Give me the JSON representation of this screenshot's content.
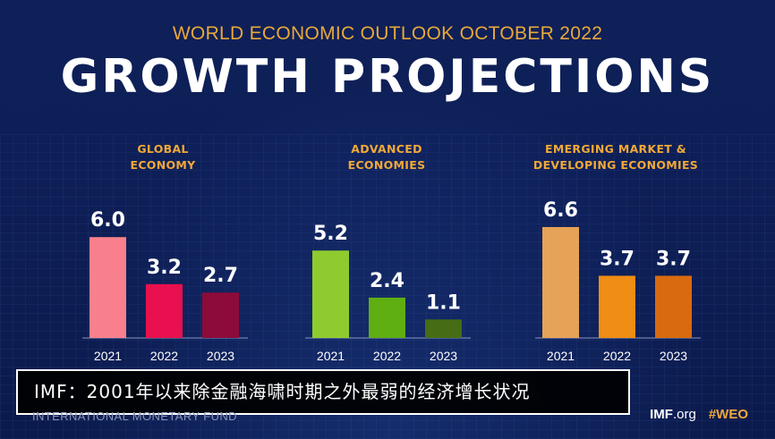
{
  "header": {
    "subtitle": "WORLD ECONOMIC OUTLOOK OCTOBER 2022",
    "title": "GROWTH PROJECTIONS"
  },
  "colors": {
    "background": "#0e1f57",
    "accent": "#f0a838",
    "global": [
      "#f7808c",
      "#e8104e",
      "#8c0b3a"
    ],
    "advanced": [
      "#8fcb2f",
      "#5fae12",
      "#466c16"
    ],
    "emerging": [
      "#e6a257",
      "#f08d14",
      "#d96a0f"
    ]
  },
  "chart_data": [
    {
      "type": "bar",
      "title": "GLOBAL ECONOMY",
      "title_lines": [
        "GLOBAL",
        "ECONOMY"
      ],
      "categories": [
        "2021",
        "2022",
        "2023"
      ],
      "values": [
        6.0,
        3.2,
        2.7
      ],
      "value_labels": [
        "6.0",
        "3.2",
        "2.7"
      ],
      "ylim": [
        0,
        7
      ]
    },
    {
      "type": "bar",
      "title": "ADVANCED ECONOMIES",
      "title_lines": [
        "ADVANCED",
        "ECONOMIES"
      ],
      "categories": [
        "2021",
        "2022",
        "2023"
      ],
      "values": [
        5.2,
        2.4,
        1.1
      ],
      "value_labels": [
        "5.2",
        "2.4",
        "1.1"
      ],
      "ylim": [
        0,
        7
      ]
    },
    {
      "type": "bar",
      "title": "EMERGING MARKET & DEVELOPING ECONOMIES",
      "title_lines": [
        "EMERGING MARKET &",
        "DEVELOPING ECONOMIES"
      ],
      "categories": [
        "2021",
        "2022",
        "2023"
      ],
      "values": [
        6.6,
        3.7,
        3.7
      ],
      "value_labels": [
        "6.6",
        "3.7",
        "3.7"
      ],
      "ylim": [
        0,
        7
      ]
    }
  ],
  "caption": {
    "text": "IMF：2001年以来除金融海啸时期之外最弱的经济增长状况"
  },
  "footer": {
    "org_name": "INTERNATIONAL MONETARY FUND",
    "site_bold": "IMF",
    "site_rest": ".org",
    "hashtag": "#WEO"
  }
}
